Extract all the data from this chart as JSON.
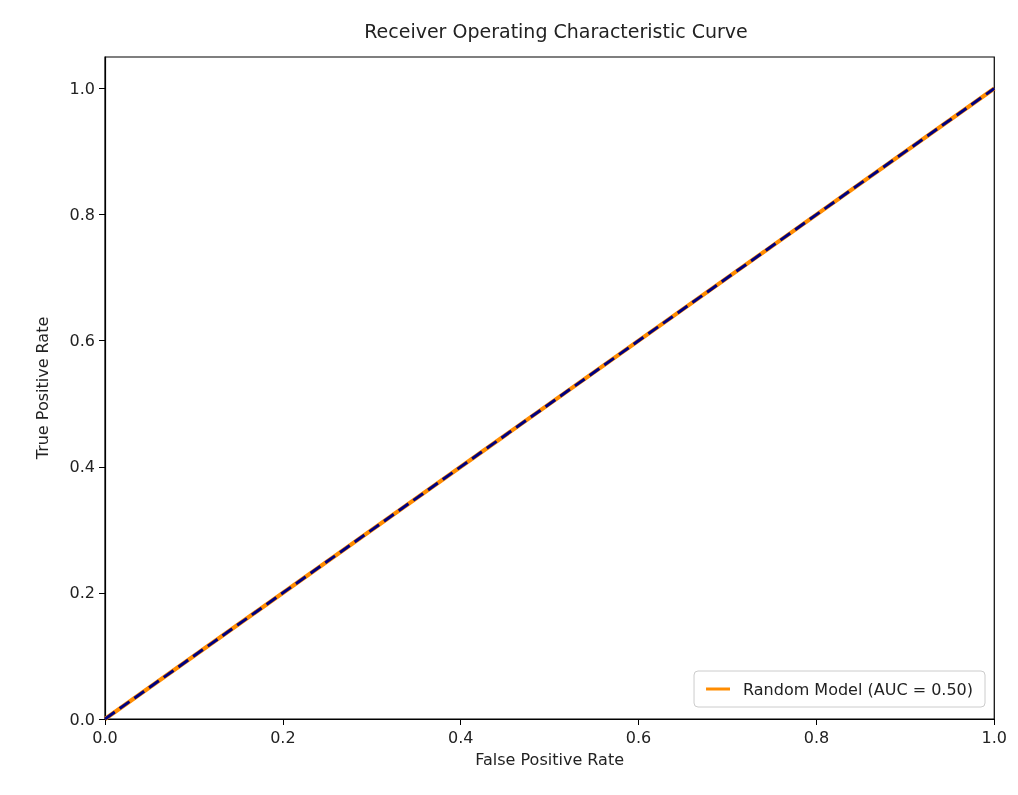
{
  "chart_data": {
    "type": "line",
    "title": "Receiver Operating Characteristic Curve",
    "xlabel": "False Positive Rate",
    "ylabel": "True Positive Rate",
    "x": [
      0,
      1
    ],
    "series": [
      {
        "name": "Random Model (AUC = 0.50)",
        "color": "#ff8c00",
        "values": [
          0,
          1
        ],
        "line_style": "solid"
      },
      {
        "color": "#000080",
        "values": [
          0,
          1
        ],
        "line_style": "dashed"
      }
    ],
    "xlim": [
      0,
      1
    ],
    "ylim": [
      0,
      1.05
    ],
    "xticks": [
      {
        "value": 0,
        "label": "0.0"
      },
      {
        "value": 0.2,
        "label": "0.2"
      },
      {
        "value": 0.4,
        "label": "0.4"
      },
      {
        "value": 0.6,
        "label": "0.6"
      },
      {
        "value": 0.8,
        "label": "0.8"
      },
      {
        "value": 1,
        "label": "1.0"
      }
    ],
    "yticks": [
      {
        "value": 0,
        "label": "0.0"
      },
      {
        "value": 0.2,
        "label": "0.2"
      },
      {
        "value": 0.4,
        "label": "0.4"
      },
      {
        "value": 0.6,
        "label": "0.6"
      },
      {
        "value": 0.8,
        "label": "0.8"
      },
      {
        "value": 1,
        "label": "1.0"
      }
    ],
    "grid": false,
    "legend": "bottom right",
    "marker": "none"
  }
}
